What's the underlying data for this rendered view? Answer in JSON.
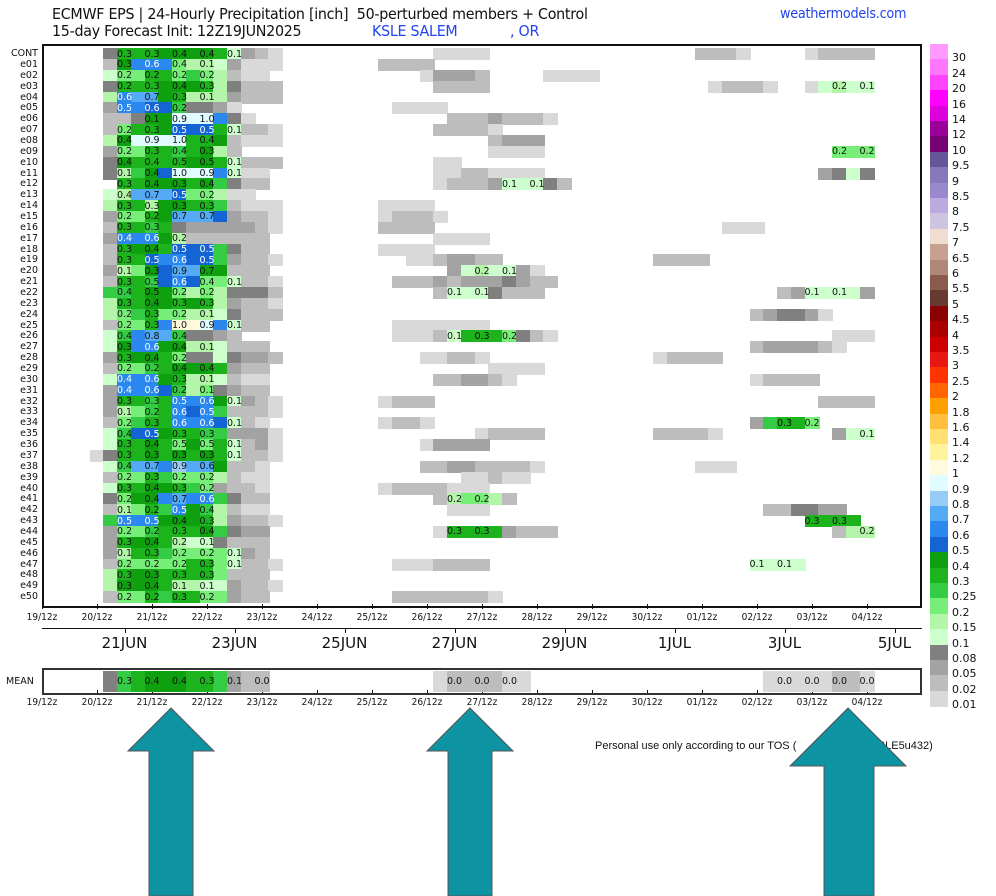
{
  "header": {
    "title": "ECMWF EPS | 24-Hourly Precipitation [inch]  50-perturbed members + Control",
    "init": "15-day Forecast Init: 12Z19JUN2025",
    "station": "KSLE SALEM",
    "state": ", OR",
    "site": "weathermodels.com"
  },
  "footer": {
    "tos_left": "Personal use only according to our TOS (",
    "tos_right": "0UKSLE5u432)"
  },
  "colors": {
    "arrow": "#0e93a3",
    "text_blue": "#2244ee"
  },
  "chart_data": {
    "type": "heatmap",
    "title": "24-Hourly Precipitation [inch]",
    "x_step_hours": 6,
    "x_start": "19/12z",
    "x_tick_labels": [
      "19/12z",
      "20/12z",
      "21/12z",
      "22/12z",
      "23/12z",
      "24/12z",
      "25/12z",
      "26/12z",
      "27/12z",
      "28/12z",
      "29/12z",
      "30/12z",
      "01/12z",
      "02/12z",
      "03/12z",
      "04/12z"
    ],
    "date_labels": [
      "21JUN",
      "23JUN",
      "25JUN",
      "27JUN",
      "29JUN",
      "1JUL",
      "3JUL",
      "5JUL"
    ],
    "level_codes": {
      "a": 0.01,
      "b": 0.02,
      "c": 0.05,
      "d": 0.08,
      "1": 0.1,
      "2": 0.15,
      "3": 0.2,
      "4": 0.25,
      "5": 0.3,
      "6": 0.4,
      "7": 0.5,
      "8": 0.6,
      "9": 0.7,
      "E": 0.8,
      "F": 0.9,
      "G": 1.0
    },
    "level_colors": {
      "a": "#d9d9d9",
      "b": "#bdbdbd",
      "c": "#a3a3a3",
      "d": "#808080",
      "1": "#ccffcc",
      "2": "#b3f5a9",
      "3": "#77ee77",
      "4": "#33cc44",
      "5": "#1db31d",
      "6": "#0fa00f",
      "7": "#1464d4",
      "8": "#2a88ee",
      "9": "#55aaf5",
      "E": "#99ccf5",
      "F": "#e0fcff",
      "G": "#fffadc"
    },
    "rows": [
      {
        "id": "CONT",
        "cells": {
          "5": "d555666651cba",
          "29": "aaaa",
          "48": "bbba",
          "56": "abbbb"
        },
        "labels": {
          "6": "0.3",
          "8": "0.3",
          "10": "0.4",
          "12": "0.4",
          "14": "0.1"
        }
      },
      {
        "id": "e01",
        "cells": {
          "5": "b68883221caaa",
          "25": "bbbb"
        },
        "labels": {
          "6": "0.3",
          "8": "0.6",
          "10": "0.4",
          "12": "0.1"
        }
      },
      {
        "id": "e02",
        "cells": {
          "5": "133553432baa",
          "28": "acccb",
          "37": "aaaa"
        },
        "labels": {
          "6": "0.2",
          "8": "0.2",
          "10": "0.2",
          "12": "0.2"
        }
      },
      {
        "id": "e03",
        "cells": {
          "5": "d55566652dbbb",
          "29": "bbbb",
          "49": "abbba",
          "56": "a1211"
        },
        "labels": {
          "6": "0.2",
          "8": "0.3",
          "10": "0.4",
          "12": "0.3",
          "58": "0.2",
          "60": "0.1"
        }
      },
      {
        "id": "e04",
        "cells": {
          "5": "289965222cbbb"
        },
        "labels": {
          "6": "0.6",
          "8": "0.7",
          "10": "0.3",
          "12": "0.1"
        }
      },
      {
        "id": "e05",
        "cells": {
          "5": "c88774ddca",
          "26": "aaaa"
        },
        "labels": {
          "6": "0.5",
          "8": "0.6",
          "10": "0.2"
        }
      },
      {
        "id": "e06",
        "cells": {
          "5": "bbd66FFF8da",
          "30": "bbbcbbba"
        },
        "labels": {
          "8": "0.1",
          "10": "0.9",
          "12": "1.0"
        }
      },
      {
        "id": "e07",
        "cells": {
          "5": "b355677751bba",
          "29": "bbbba"
        },
        "labels": {
          "6": "0.2",
          "8": "0.3",
          "10": "0.5",
          "12": "0.5",
          "14": "0.1"
        }
      },
      {
        "id": "e08",
        "cells": {
          "5": "26FFFF556baaa",
          "33": "bccc"
        },
        "labels": {
          "6": "0.4",
          "8": "0.9",
          "10": "1.0",
          "12": "0.4"
        }
      },
      {
        "id": "e09",
        "cells": {
          "5": "c33554562b",
          "33": "aaaa",
          "58": "333"
        },
        "labels": {
          "6": "0.2",
          "8": "0.3",
          "10": "0.4",
          "12": "0.3",
          "58": "0.2",
          "60": "0.2"
        }
      },
      {
        "id": "e10",
        "cells": {
          "5": "d655556651bbb",
          "29": "aa"
        },
        "labels": {
          "6": "0.4",
          "8": "0.4",
          "10": "0.5",
          "12": "0.5",
          "14": "0.1"
        }
      },
      {
        "id": "e11",
        "cells": {
          "5": "d2467FFF81aa",
          "29": "aabbaaaa",
          "57": "cd1d"
        },
        "labels": {
          "6": "0.1",
          "8": "0.4",
          "10": "1.0",
          "12": "0.9",
          "14": "0.1"
        }
      },
      {
        "id": "e12",
        "cells": {
          "6": "55666564dbb",
          "29": "abbbc111db"
        },
        "labels": {
          "6": "0.3",
          "8": "0.4",
          "10": "0.3",
          "12": "0.4",
          "34": "0.1",
          "36": "0.1"
        }
      },
      {
        "id": "e13",
        "cells": {
          "5": "129997332aa"
        },
        "labels": {
          "6": "0.4",
          "8": "0.7",
          "10": "0.5",
          "12": "0.2"
        }
      },
      {
        "id": "e14",
        "cells": {
          "5": "255266554baaa",
          "25": "aaaa"
        },
        "labels": {
          "6": "0.3",
          "8": "0.3",
          "10": "0.3",
          "12": "0.3"
        }
      },
      {
        "id": "e15",
        "cells": {
          "5": "c33569997cbba",
          "25": "abbba"
        },
        "labels": {
          "6": "0.2",
          "8": "0.2",
          "10": "0.7",
          "12": "0.7"
        }
      },
      {
        "id": "e16",
        "cells": {
          "5": "b5545dcccccba",
          "25": "bbbb",
          "50": "aaa"
        },
        "labels": {
          "6": "0.3",
          "8": "0.3"
        }
      },
      {
        "id": "e17",
        "cells": {
          "5": "c88862bbbbbb",
          "29": "aaaa"
        },
        "labels": {
          "6": "0.4",
          "8": "0.6",
          "10": "0.2"
        }
      },
      {
        "id": "e18",
        "cells": {
          "5": "b56657774dbb",
          "25": "aaaa"
        },
        "labels": {
          "6": "0.3",
          "8": "0.4",
          "10": "0.5",
          "12": "0.5"
        }
      },
      {
        "id": "e19",
        "cells": {
          "5": "b55788774cbba",
          "27": "aabccbb",
          "45": "bbbb"
        },
        "labels": {
          "6": "0.3",
          "8": "0.5",
          "10": "0.6",
          "12": "0.5"
        }
      },
      {
        "id": "e20",
        "cells": {
          "5": "c23679966bbb",
          "30": "c1211ca"
        },
        "labels": {
          "6": "0.1",
          "8": "0.3",
          "10": "0.9",
          "12": "0.7",
          "32": "0.2",
          "34": "0.1"
        }
      },
      {
        "id": "e21",
        "cells": {
          "5": "b554787331bba",
          "26": "bbbcbcccdcbb"
        },
        "labels": {
          "6": "0.3",
          "8": "0.5",
          "10": "0.6",
          "12": "0.4",
          "14": "0.1"
        }
      },
      {
        "id": "e22",
        "cells": {
          "5": "445663232dddb",
          "29": "b111dbbb",
          "54": "bc1111c"
        },
        "labels": {
          "6": "0.4",
          "8": "0.5",
          "10": "0.2",
          "12": "0.2",
          "30": "0.1",
          "32": "0.1",
          "56": "0.1",
          "58": "0.1"
        }
      },
      {
        "id": "e23",
        "cells": {
          "5": "255665652cbba"
        },
        "labels": {
          "6": "0.3",
          "8": "0.4",
          "10": "0.3",
          "12": "0.3"
        }
      },
      {
        "id": "e24",
        "cells": {
          "5": "234533221dbbb",
          "52": "bcddca"
        },
        "labels": {
          "6": "0.2",
          "8": "0.3",
          "10": "0.2",
          "12": "0.1"
        }
      },
      {
        "id": "e25",
        "cells": {
          "5": "b3358GGF81bb",
          "26": "aaaaaaa"
        },
        "labels": {
          "6": "0.2",
          "8": "0.3",
          "10": "1.0",
          "12": "0.9",
          "14": "0.1"
        }
      },
      {
        "id": "e26",
        "cells": {
          "5": "148994ddcb",
          "26": "aaab15553dba",
          "58": "aaa"
        },
        "labels": {
          "6": "0.4",
          "8": "0.8",
          "10": "0.4",
          "30": "0.1",
          "32": "0.3",
          "34": "0.2"
        }
      },
      {
        "id": "e27",
        "cells": {
          "5": "168866221bbb",
          "52": "bccccba"
        },
        "labels": {
          "6": "0.3",
          "8": "0.6",
          "10": "0.4",
          "12": "0.1"
        }
      },
      {
        "id": "e28",
        "cells": {
          "5": "c56653dd1dccb",
          "28": "aabba",
          "45": "abbbb"
        },
        "labels": {
          "6": "0.3",
          "8": "0.4",
          "10": "0.2"
        }
      },
      {
        "id": "e29",
        "cells": {
          "5": "b33456665cbb",
          "33": "aaaa"
        },
        "labels": {
          "6": "0.2",
          "8": "0.2",
          "10": "0.4",
          "12": "0.4"
        }
      },
      {
        "id": "e30",
        "cells": {
          "5": "188865221baa",
          "29": "bbccba",
          "52": "abbbb"
        },
        "labels": {
          "6": "0.4",
          "8": "0.6",
          "10": "0.3",
          "12": "0.1"
        }
      },
      {
        "id": "e31",
        "cells": {
          "5": "c8887423dcbb"
        },
        "labels": {
          "6": "0.4",
          "8": "0.6",
          "10": "0.2",
          "12": "0.1"
        }
      },
      {
        "id": "e32",
        "cells": {
          "5": "c554588861cba",
          "25": "abbb",
          "57": "bbbb"
        },
        "labels": {
          "6": "0.3",
          "8": "0.3",
          "10": "0.5",
          "12": "0.6",
          "14": "0.1"
        }
      },
      {
        "id": "e33",
        "cells": {
          "5": "c23458784bbba"
        },
        "labels": {
          "6": "0.1",
          "8": "0.2",
          "10": "0.6",
          "12": "0.5"
        }
      },
      {
        "id": "e34",
        "cells": {
          "5": "b345588871ba",
          "25": "abba",
          "52": "c4553"
        },
        "labels": {
          "6": "0.2",
          "8": "0.3",
          "10": "0.6",
          "12": "0.6",
          "14": "0.1",
          "54": "0.3",
          "56": "0.2"
        }
      },
      {
        "id": "e35",
        "cells": {
          "5": "147765544ccca",
          "32": "abbbb",
          "45": "bbbba",
          "58": "c11"
        },
        "labels": {
          "6": "0.4",
          "8": "0.5",
          "10": "0.3",
          "12": "0.3",
          "60": "0.1"
        }
      },
      {
        "id": "e36",
        "cells": {
          "5": "1556536351bca",
          "28": "acccc"
        },
        "labels": {
          "6": "0.3",
          "8": "0.4",
          "10": "0.5",
          "12": "0.5",
          "14": "0.1"
        }
      },
      {
        "id": "e37",
        "cells": {
          "4": "ad556565651bba"
        },
        "labels": {
          "6": "0.3",
          "8": "0.3",
          "10": "0.3",
          "12": "0.3",
          "14": "0.1"
        }
      },
      {
        "id": "e38",
        "cells": {
          "5": "14998E996bba",
          "28": "bbccbbbba",
          "48": "aaa"
        },
        "labels": {
          "6": "0.4",
          "8": "0.7",
          "10": "0.9",
          "12": "0.6"
        }
      },
      {
        "id": "e39",
        "cells": {
          "5": "b33543332baa",
          "31": "aabaa"
        },
        "labels": {
          "6": "0.2",
          "8": "0.3",
          "10": "0.2",
          "12": "0.2"
        }
      },
      {
        "id": "e40",
        "cells": {
          "5": "15566543cbba",
          "25": "abbbbaaa"
        },
        "labels": {
          "6": "0.3",
          "8": "0.4",
          "10": "0.3",
          "12": "0.2"
        }
      },
      {
        "id": "e41",
        "cells": {
          "5": "d36689884dbb",
          "29": "b2332b"
        },
        "labels": {
          "6": "0.2",
          "8": "0.4",
          "10": "0.7",
          "12": "0.6",
          "30": "0.2",
          "32": "0.2"
        }
      },
      {
        "id": "e42",
        "cells": {
          "5": "b23548642baa",
          "30": "aaa",
          "53": "bbddcc"
        },
        "labels": {
          "6": "0.1",
          "8": "0.2",
          "10": "0.5",
          "12": "0.4"
        }
      },
      {
        "id": "e43",
        "cells": {
          "5": "488866652cbba",
          "56": "5555"
        },
        "labels": {
          "6": "0.5",
          "8": "0.5",
          "10": "0.4",
          "12": "0.3",
          "56": "0.3",
          "58": "0.3"
        }
      },
      {
        "id": "e44",
        "cells": {
          "5": "c33455564dcc",
          "29": "a5555cbbb",
          "58": "b22"
        },
        "labels": {
          "6": "0.2",
          "8": "0.2",
          "10": "0.3",
          "12": "0.4",
          "30": "0.3",
          "32": "0.3",
          "60": "0.2"
        }
      },
      {
        "id": "e45",
        "cells": {
          "5": "c5665211dbbb"
        },
        "labels": {
          "6": "0.3",
          "8": "0.4",
          "10": "0.2",
          "12": "0.1"
        }
      },
      {
        "id": "e46",
        "cells": {
          "5": "c255433331cb"
        },
        "labels": {
          "6": "0.1",
          "8": "0.3",
          "10": "0.2",
          "12": "0.2",
          "14": "0.1"
        }
      },
      {
        "id": "e47",
        "cells": {
          "5": "b333335531bba",
          "26": "aaabbbb",
          "52": "1111"
        },
        "labels": {
          "6": "0.2",
          "8": "0.2",
          "10": "0.2",
          "12": "0.3",
          "14": "0.1",
          "52": "0.1",
          "54": "0.1"
        }
      },
      {
        "id": "e48",
        "cells": {
          "5": "256655553bbb"
        },
        "labels": {
          "6": "0.3",
          "8": "0.3",
          "10": "0.3",
          "12": "0.3"
        }
      },
      {
        "id": "e49",
        "cells": {
          "5": "266652211cbba"
        },
        "labels": {
          "6": "0.3",
          "8": "0.4",
          "10": "0.1",
          "12": "0.1"
        }
      },
      {
        "id": "e50",
        "cells": {
          "5": "b33545533cbb",
          "26": "bbbbbbba"
        },
        "labels": {
          "6": "0.2",
          "8": "0.2",
          "10": "0.3",
          "12": "0.2"
        }
      }
    ],
    "mean": {
      "id": "MEAN",
      "cells": {
        "5": "d45666554cbb",
        "29": "abbbbaa",
        "53": "aaaaabba"
      },
      "labels": {
        "6": "0.3",
        "8": "0.4",
        "10": "0.4",
        "12": "0.3",
        "14": "0.1",
        "16": "0.0",
        "30": "0.0",
        "32": "0.0",
        "34": "0.0",
        "54": "0.0",
        "56": "0.0",
        "58": "0.0",
        "60": "0.0"
      }
    },
    "colorbar": {
      "labels": [
        "30",
        "24",
        "20",
        "16",
        "14",
        "12",
        "10",
        "9.5",
        "9",
        "8.5",
        "8",
        "7.5",
        "7",
        "6.5",
        "6",
        "5.5",
        "5",
        "4.5",
        "4",
        "3.5",
        "3",
        "2.5",
        "2",
        "1.8",
        "1.6",
        "1.4",
        "1.2",
        "1",
        "0.9",
        "0.8",
        "0.7",
        "0.6",
        "0.5",
        "0.4",
        "0.3",
        "0.25",
        "0.2",
        "0.15",
        "0.1",
        "0.08",
        "0.05",
        "0.02",
        "0.01"
      ],
      "colors": [
        "#ff99ff",
        "#ff77ff",
        "#ff44ff",
        "#ff00ff",
        "#dd00dd",
        "#990099",
        "#770077",
        "#665599",
        "#8877bb",
        "#9988cc",
        "#bbaadd",
        "#ccc4e0",
        "#f0dcd0",
        "#c8a090",
        "#b08878",
        "#8a5a4a",
        "#663a30",
        "#8b0000",
        "#aa0000",
        "#cc0000",
        "#e81810",
        "#ff3300",
        "#ff6600",
        "#ffa000",
        "#ffc040",
        "#ffe070",
        "#fff3a0",
        "#fffadc",
        "#e0fcff",
        "#99ccf5",
        "#55aaf5",
        "#2a88ee",
        "#1464d4",
        "#0fa00f",
        "#1db31d",
        "#33cc44",
        "#77ee77",
        "#b3f5a9",
        "#ccffcc",
        "#808080",
        "#a3a3a3",
        "#bdbdbd",
        "#d9d9d9"
      ]
    }
  }
}
